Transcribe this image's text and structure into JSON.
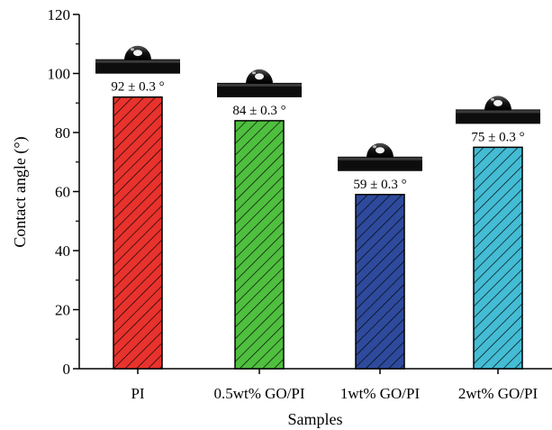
{
  "chart_data": {
    "type": "bar",
    "xlabel": "Samples",
    "ylabel": "Contact angle (°)",
    "ylim": [
      0,
      120
    ],
    "yticks": [
      0,
      20,
      40,
      60,
      80,
      100,
      120
    ],
    "categories": [
      "PI",
      "0.5wt% GO/PI",
      "1wt% GO/PI",
      "2wt% GO/PI"
    ],
    "values": [
      92,
      84,
      59,
      75
    ],
    "data_labels": [
      "92 ± 0.3 °",
      "84 ± 0.3 °",
      "59 ± 0.3 °",
      "75 ± 0.3 °"
    ],
    "error": 0.3,
    "bar_colors": [
      "#e8322d",
      "#4fbf3f",
      "#2e4a9c",
      "#44bcd4"
    ],
    "bar_pattern": "diagonal-hatch",
    "inset_images": "water droplet photo above each bar",
    "grid": false,
    "legend": "none"
  }
}
